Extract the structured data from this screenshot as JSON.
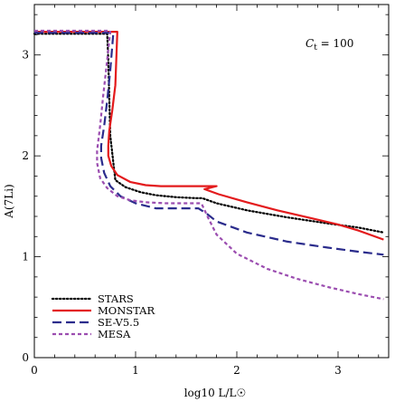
{
  "chart_data": {
    "type": "line",
    "xlabel": "log10 L/L☉",
    "ylabel": "A(7Li)",
    "xlim": [
      0,
      3.5
    ],
    "ylim": [
      0,
      3.5
    ],
    "xticks": [
      "0",
      "1",
      "2",
      "3"
    ],
    "yticks": [
      "0",
      "1",
      "2",
      "3"
    ],
    "annotation": "Ct = 100",
    "legend_position": "bottom-left",
    "grid": false,
    "series": [
      {
        "name": "STARS",
        "color": "#000000",
        "style": "dotted",
        "x": [
          0.0,
          0.72,
          0.73,
          0.75,
          0.8,
          0.9,
          1.05,
          1.2,
          1.4,
          1.6,
          1.66,
          1.8,
          2.1,
          2.5,
          2.9,
          3.2,
          3.45
        ],
        "y": [
          3.21,
          3.21,
          2.95,
          2.2,
          1.76,
          1.69,
          1.64,
          1.61,
          1.59,
          1.58,
          1.58,
          1.53,
          1.46,
          1.39,
          1.33,
          1.29,
          1.24
        ]
      },
      {
        "name": "MONSTAR",
        "color": "#e31a1c",
        "style": "solid",
        "x": [
          0.0,
          0.82,
          0.8,
          0.77,
          0.74,
          0.73,
          0.73,
          0.76,
          0.82,
          0.95,
          1.1,
          1.25,
          1.4,
          1.55,
          1.65,
          1.75,
          1.8,
          1.68,
          1.82,
          2.1,
          2.4,
          2.7,
          3.0,
          3.2,
          3.45
        ],
        "y": [
          3.23,
          3.23,
          2.7,
          2.45,
          2.25,
          2.1,
          2.0,
          1.9,
          1.81,
          1.74,
          1.71,
          1.7,
          1.7,
          1.7,
          1.7,
          1.7,
          1.7,
          1.67,
          1.62,
          1.54,
          1.46,
          1.39,
          1.32,
          1.26,
          1.17
        ]
      },
      {
        "name": "SE-V5.5",
        "color": "#2b2c8c",
        "style": "dashed",
        "x": [
          0.0,
          0.78,
          0.75,
          0.72,
          0.69,
          0.66,
          0.66,
          0.69,
          0.75,
          0.85,
          1.0,
          1.2,
          1.4,
          1.62,
          1.7,
          1.8,
          2.1,
          2.5,
          2.9,
          3.2,
          3.45
        ],
        "y": [
          3.22,
          3.22,
          2.85,
          2.55,
          2.3,
          2.1,
          1.98,
          1.83,
          1.7,
          1.6,
          1.53,
          1.48,
          1.48,
          1.48,
          1.43,
          1.35,
          1.24,
          1.15,
          1.09,
          1.05,
          1.02
        ]
      },
      {
        "name": "MESA",
        "color": "#9b4db0",
        "style": "dashed-short",
        "x": [
          0.0,
          0.75,
          0.72,
          0.68,
          0.65,
          0.62,
          0.62,
          0.65,
          0.72,
          0.82,
          0.95,
          1.1,
          1.3,
          1.5,
          1.65,
          1.72,
          1.8,
          2.0,
          2.3,
          2.6,
          2.9,
          3.2,
          3.45
        ],
        "y": [
          3.24,
          3.24,
          2.95,
          2.6,
          2.3,
          2.05,
          1.93,
          1.78,
          1.68,
          1.6,
          1.56,
          1.54,
          1.53,
          1.53,
          1.53,
          1.38,
          1.22,
          1.03,
          0.88,
          0.78,
          0.7,
          0.63,
          0.58
        ]
      }
    ]
  }
}
